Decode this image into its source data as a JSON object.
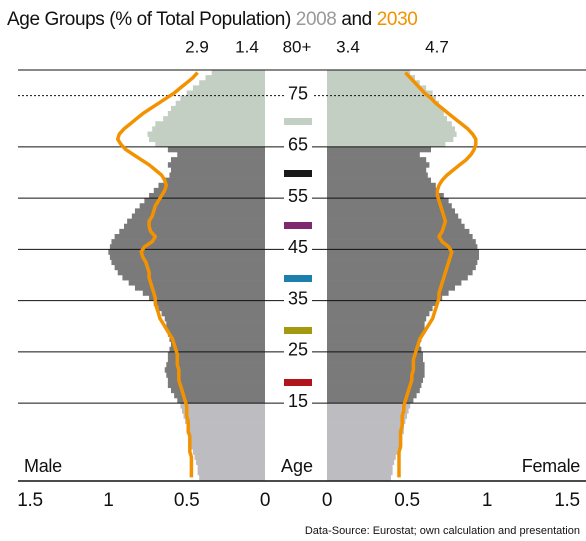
{
  "chart_data": {
    "type": "pyramid",
    "title": "Age Groups (% of Total Population)",
    "title_and": "and",
    "axis_label": "Age",
    "male_label": "Male",
    "female_label": "Female",
    "source": "Data-Source: Eurostat; own calculation and presentation",
    "top_group": {
      "label": "80+",
      "male_2030": 2.9,
      "male_2008": 1.4,
      "female_2008": 3.4,
      "female_2030": 4.7
    },
    "ages": [
      0,
      1,
      2,
      3,
      4,
      5,
      6,
      7,
      8,
      9,
      10,
      11,
      12,
      13,
      14,
      15,
      16,
      17,
      18,
      19,
      20,
      21,
      22,
      23,
      24,
      25,
      26,
      27,
      28,
      29,
      30,
      31,
      32,
      33,
      34,
      35,
      36,
      37,
      38,
      39,
      40,
      41,
      42,
      43,
      44,
      45,
      46,
      47,
      48,
      49,
      50,
      51,
      52,
      53,
      54,
      55,
      56,
      57,
      58,
      59,
      60,
      61,
      62,
      63,
      64,
      65,
      66,
      67,
      68,
      69,
      70,
      71,
      72,
      73,
      74,
      75,
      76,
      77,
      78,
      79
    ],
    "ylim": [
      0,
      80
    ],
    "yticks": [
      15,
      25,
      35,
      45,
      55,
      65,
      75
    ],
    "grid_dotted": [
      false,
      false,
      false,
      false,
      false,
      false,
      true
    ],
    "xlim": [
      0,
      1.5
    ],
    "xticks": [
      0,
      0.5,
      1,
      1.5
    ],
    "color_breaks": [
      15,
      65
    ],
    "bar_colors": [
      "#bcbcc1",
      "#7a7a7a",
      "#c3cfc3"
    ],
    "series": [
      {
        "name": "2008",
        "color": "#999999",
        "male": [
          0.42,
          0.43,
          0.43,
          0.44,
          0.45,
          0.46,
          0.47,
          0.48,
          0.49,
          0.5,
          0.5,
          0.51,
          0.52,
          0.53,
          0.54,
          0.56,
          0.58,
          0.6,
          0.62,
          0.62,
          0.63,
          0.64,
          0.63,
          0.62,
          0.62,
          0.61,
          0.6,
          0.61,
          0.62,
          0.63,
          0.63,
          0.64,
          0.66,
          0.68,
          0.71,
          0.74,
          0.78,
          0.83,
          0.87,
          0.91,
          0.94,
          0.96,
          0.98,
          0.99,
          1.0,
          0.99,
          0.98,
          0.96,
          0.93,
          0.9,
          0.88,
          0.85,
          0.83,
          0.8,
          0.77,
          0.74,
          0.71,
          0.68,
          0.64,
          0.61,
          0.6,
          0.62,
          0.6,
          0.56,
          0.62,
          0.7,
          0.74,
          0.75,
          0.72,
          0.7,
          0.65,
          0.62,
          0.6,
          0.57,
          0.54,
          0.5,
          0.46,
          0.42,
          0.38,
          0.34
        ],
        "female": [
          0.4,
          0.41,
          0.41,
          0.42,
          0.43,
          0.44,
          0.45,
          0.46,
          0.47,
          0.48,
          0.48,
          0.49,
          0.5,
          0.51,
          0.52,
          0.54,
          0.56,
          0.58,
          0.59,
          0.6,
          0.61,
          0.61,
          0.61,
          0.6,
          0.6,
          0.59,
          0.58,
          0.59,
          0.6,
          0.61,
          0.61,
          0.62,
          0.64,
          0.66,
          0.69,
          0.72,
          0.76,
          0.8,
          0.84,
          0.88,
          0.91,
          0.93,
          0.94,
          0.95,
          0.95,
          0.94,
          0.93,
          0.91,
          0.89,
          0.86,
          0.84,
          0.82,
          0.8,
          0.78,
          0.76,
          0.73,
          0.7,
          0.68,
          0.65,
          0.63,
          0.62,
          0.64,
          0.62,
          0.58,
          0.65,
          0.74,
          0.79,
          0.81,
          0.8,
          0.78,
          0.75,
          0.73,
          0.72,
          0.7,
          0.68,
          0.66,
          0.62,
          0.58,
          0.55,
          0.52
        ]
      },
      {
        "name": "2030",
        "color": "#f39200",
        "male": [
          0.47,
          0.47,
          0.47,
          0.47,
          0.47,
          0.48,
          0.48,
          0.48,
          0.48,
          0.49,
          0.49,
          0.49,
          0.5,
          0.5,
          0.5,
          0.51,
          0.52,
          0.53,
          0.54,
          0.55,
          0.55,
          0.55,
          0.56,
          0.56,
          0.56,
          0.57,
          0.58,
          0.59,
          0.61,
          0.63,
          0.65,
          0.67,
          0.68,
          0.69,
          0.7,
          0.7,
          0.71,
          0.72,
          0.73,
          0.74,
          0.74,
          0.75,
          0.76,
          0.78,
          0.79,
          0.77,
          0.72,
          0.7,
          0.73,
          0.74,
          0.74,
          0.72,
          0.71,
          0.7,
          0.68,
          0.66,
          0.64,
          0.63,
          0.64,
          0.66,
          0.7,
          0.74,
          0.79,
          0.84,
          0.89,
          0.92,
          0.94,
          0.93,
          0.9,
          0.86,
          0.82,
          0.78,
          0.73,
          0.68,
          0.63,
          0.58,
          0.54,
          0.5,
          0.46,
          0.43
        ],
        "female": [
          0.45,
          0.45,
          0.45,
          0.45,
          0.45,
          0.45,
          0.46,
          0.46,
          0.46,
          0.46,
          0.47,
          0.47,
          0.47,
          0.48,
          0.48,
          0.49,
          0.5,
          0.51,
          0.52,
          0.53,
          0.53,
          0.54,
          0.54,
          0.54,
          0.55,
          0.56,
          0.57,
          0.58,
          0.6,
          0.62,
          0.64,
          0.66,
          0.67,
          0.68,
          0.69,
          0.7,
          0.7,
          0.71,
          0.72,
          0.73,
          0.74,
          0.75,
          0.76,
          0.77,
          0.78,
          0.76,
          0.72,
          0.7,
          0.72,
          0.73,
          0.74,
          0.73,
          0.72,
          0.71,
          0.7,
          0.69,
          0.69,
          0.7,
          0.72,
          0.75,
          0.79,
          0.83,
          0.87,
          0.9,
          0.92,
          0.93,
          0.93,
          0.91,
          0.88,
          0.84,
          0.8,
          0.76,
          0.72,
          0.68,
          0.65,
          0.61,
          0.58,
          0.55,
          0.52,
          0.49
        ]
      }
    ]
  }
}
